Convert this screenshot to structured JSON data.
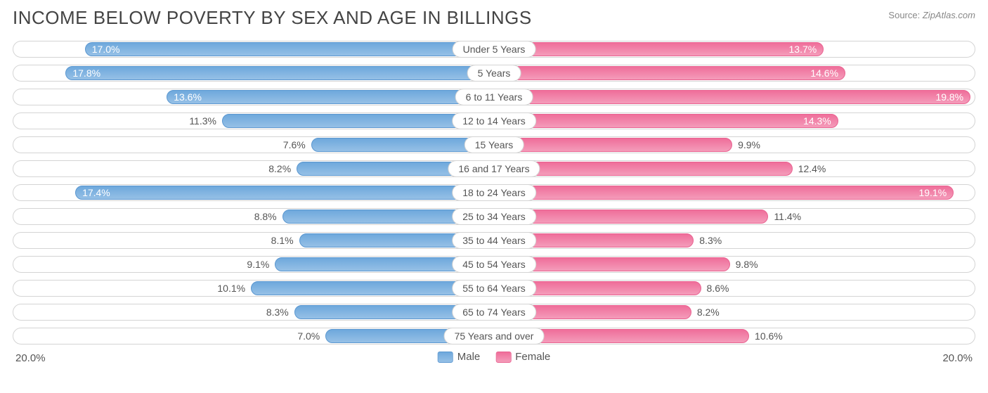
{
  "title": "INCOME BELOW POVERTY BY SEX AND AGE IN BILLINGS",
  "source_label": "Source:",
  "source_value": "ZipAtlas.com",
  "axis_max_pct": 20.0,
  "axis_label_left": "20.0%",
  "axis_label_right": "20.0%",
  "label_inside_threshold": 13.0,
  "colors": {
    "male_fill_a": "#6ea8dc",
    "male_fill_b": "#96c0e6",
    "male_border": "#5b97d0",
    "female_fill_a": "#ef6e9a",
    "female_fill_b": "#f49cba",
    "female_border": "#e96391",
    "track_border": "#d4d4d4",
    "text": "#555555",
    "title_text": "#444444",
    "source_text": "#888888",
    "background": "#ffffff",
    "value_in_bar": "#ffffff"
  },
  "legend": {
    "male": "Male",
    "female": "Female"
  },
  "rows": [
    {
      "category": "Under 5 Years",
      "male": 17.0,
      "female": 13.7
    },
    {
      "category": "5 Years",
      "male": 17.8,
      "female": 14.6
    },
    {
      "category": "6 to 11 Years",
      "male": 13.6,
      "female": 19.8
    },
    {
      "category": "12 to 14 Years",
      "male": 11.3,
      "female": 14.3
    },
    {
      "category": "15 Years",
      "male": 7.6,
      "female": 9.9
    },
    {
      "category": "16 and 17 Years",
      "male": 8.2,
      "female": 12.4
    },
    {
      "category": "18 to 24 Years",
      "male": 17.4,
      "female": 19.1
    },
    {
      "category": "25 to 34 Years",
      "male": 8.8,
      "female": 11.4
    },
    {
      "category": "35 to 44 Years",
      "male": 8.1,
      "female": 8.3
    },
    {
      "category": "45 to 54 Years",
      "male": 9.1,
      "female": 9.8
    },
    {
      "category": "55 to 64 Years",
      "male": 10.1,
      "female": 8.6
    },
    {
      "category": "65 to 74 Years",
      "male": 8.3,
      "female": 8.2
    },
    {
      "category": "75 Years and over",
      "male": 7.0,
      "female": 10.6
    }
  ]
}
